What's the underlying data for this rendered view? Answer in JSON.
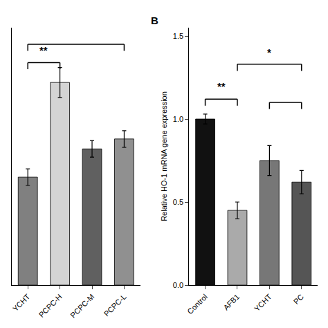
{
  "chart_data": [
    {
      "type": "bar",
      "categories": [
        "YCHT",
        "PCPC-H",
        "PCPC-M",
        "PCPC-L"
      ],
      "values": [
        0.65,
        1.22,
        0.82,
        0.88
      ],
      "errors": [
        0.05,
        0.09,
        0.05,
        0.05
      ],
      "colors": [
        "#808080",
        "#d4d4d4",
        "#606060",
        "#909090"
      ],
      "ylim": [
        0,
        1.55
      ],
      "yticks": [],
      "tick_labels": "x",
      "grid": false,
      "annotations": [
        {
          "text": "**",
          "between": [
            "YCHT",
            "PCPC-H"
          ]
        }
      ]
    },
    {
      "type": "bar",
      "title": "B",
      "categories": [
        "Control",
        "AFB1",
        "YCHT",
        "PC"
      ],
      "values": [
        1.0,
        0.45,
        0.75,
        0.62
      ],
      "errors": [
        0.03,
        0.05,
        0.09,
        0.07
      ],
      "colors": [
        "#111111",
        "#aaaaaa",
        "#777777",
        "#555555"
      ],
      "ylabel": "Relative HO-1 mRNA gene expression",
      "ylim": [
        0,
        1.55
      ],
      "yticks": [
        {
          "value": 0,
          "label": "0.0"
        },
        0.5,
        {
          "value": 1,
          "label": "1.0"
        },
        1.5
      ],
      "grid": false,
      "annotations": [
        {
          "text": "**",
          "between": [
            "Control",
            "AFB1"
          ]
        },
        {
          "text": "*",
          "between": [
            "AFB1",
            "PC"
          ]
        }
      ]
    }
  ]
}
